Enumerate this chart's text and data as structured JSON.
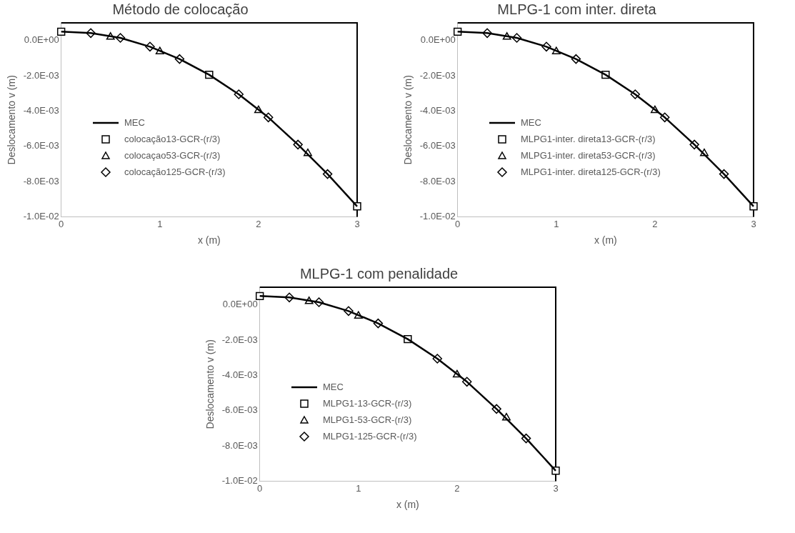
{
  "chart_data": [
    {
      "type": "line",
      "title": "Método de colocação",
      "xlabel": "x (m)",
      "ylabel": "Deslocamento v (m)",
      "xlim": [
        0,
        3
      ],
      "xticks": [
        0,
        1,
        2,
        3
      ],
      "ylim": [
        -0.01,
        0.001
      ],
      "yticks": [
        {
          "value": 0,
          "label": "0.0E+00"
        },
        {
          "value": -0.002,
          "label": "-2.0E-03"
        },
        {
          "value": -0.004,
          "label": "-4.0E-03"
        },
        {
          "value": -0.006,
          "label": "-6.0E-03"
        },
        {
          "value": -0.008,
          "label": "-8.0E-03"
        },
        {
          "value": -0.01,
          "label": "-1.0E-02"
        }
      ],
      "grid": false,
      "legend": "bottom left",
      "series": [
        {
          "name": "MEC",
          "type": "line",
          "color": "#000000",
          "marker": "none",
          "x": [
            0,
            0.3,
            0.6,
            0.9,
            1.2,
            1.5,
            1.8,
            2.1,
            2.4,
            2.7,
            3
          ],
          "values": [
            0.0005,
            0.00042,
            0.00015,
            -0.00035,
            -0.00105,
            -0.00194,
            -0.00305,
            -0.00436,
            -0.0059,
            -0.00757,
            -0.0094
          ]
        },
        {
          "name": "colocação13-GCR-(r/3)",
          "type": "scatter",
          "color": "#000000",
          "marker": "square",
          "x": [
            0,
            1.5,
            3
          ],
          "values": [
            0.0005,
            -0.00194,
            -0.0094
          ]
        },
        {
          "name": "colocaçao53-GCR-(r/3)",
          "type": "scatter",
          "color": "#000000",
          "marker": "triangle",
          "x": [
            0.5,
            1,
            2,
            2.5
          ],
          "values": [
            0.0002,
            -0.00063,
            -0.00396,
            -0.0064
          ]
        },
        {
          "name": "colocação125-GCR-(r/3)",
          "type": "scatter",
          "color": "#000000",
          "marker": "diamond",
          "x": [
            0.3,
            0.6,
            0.9,
            1.2,
            1.8,
            2.1,
            2.4,
            2.7
          ],
          "values": [
            0.00042,
            0.00015,
            -0.00035,
            -0.00105,
            -0.00305,
            -0.00436,
            -0.0059,
            -0.00757
          ]
        }
      ]
    },
    {
      "type": "line",
      "title": "MLPG-1 com inter. direta",
      "xlabel": "x (m)",
      "ylabel": "Deslocamento v (m)",
      "xlim": [
        0,
        3
      ],
      "xticks": [
        0,
        1,
        2,
        3
      ],
      "ylim": [
        -0.01,
        0.001
      ],
      "yticks": [
        {
          "value": 0,
          "label": "0.0E+00"
        },
        {
          "value": -0.002,
          "label": "-2.0E-03"
        },
        {
          "value": -0.004,
          "label": "-4.0E-03"
        },
        {
          "value": -0.006,
          "label": "-6.0E-03"
        },
        {
          "value": -0.008,
          "label": "-8.0E-03"
        },
        {
          "value": -0.01,
          "label": "-1.0E-02"
        }
      ],
      "grid": false,
      "legend": "bottom left",
      "series": [
        {
          "name": "MEC",
          "type": "line",
          "color": "#000000",
          "marker": "none",
          "x": [
            0,
            0.3,
            0.6,
            0.9,
            1.2,
            1.5,
            1.8,
            2.1,
            2.4,
            2.7,
            3
          ],
          "values": [
            0.0005,
            0.00042,
            0.00015,
            -0.00035,
            -0.00105,
            -0.00194,
            -0.00305,
            -0.00436,
            -0.0059,
            -0.00757,
            -0.0094
          ]
        },
        {
          "name": "MLPG1-inter. direta13-GCR-(r/3)",
          "type": "scatter",
          "color": "#000000",
          "marker": "square",
          "x": [
            0,
            1.5,
            3
          ],
          "values": [
            0.0005,
            -0.00194,
            -0.0094
          ]
        },
        {
          "name": "MLPG1-inter. direta53-GCR-(r/3)",
          "type": "scatter",
          "color": "#000000",
          "marker": "triangle",
          "x": [
            0.5,
            1,
            2,
            2.5
          ],
          "values": [
            0.0002,
            -0.00063,
            -0.00396,
            -0.0064
          ]
        },
        {
          "name": "MLPG1-inter. direta125-GCR-(r/3)",
          "type": "scatter",
          "color": "#000000",
          "marker": "diamond",
          "x": [
            0.3,
            0.6,
            0.9,
            1.2,
            1.8,
            2.1,
            2.4,
            2.7
          ],
          "values": [
            0.00042,
            0.00015,
            -0.00035,
            -0.00105,
            -0.00305,
            -0.00436,
            -0.0059,
            -0.00757
          ]
        }
      ]
    },
    {
      "type": "line",
      "title": "MLPG-1 com penalidade",
      "xlabel": "x (m)",
      "ylabel": "Deslocamento v (m)",
      "xlim": [
        0,
        3
      ],
      "xticks": [
        0,
        1,
        2,
        3
      ],
      "ylim": [
        -0.01,
        0.001
      ],
      "yticks": [
        {
          "value": 0,
          "label": "0.0E+00"
        },
        {
          "value": -0.002,
          "label": "-2.0E-03"
        },
        {
          "value": -0.004,
          "label": "-4.0E-03"
        },
        {
          "value": -0.006,
          "label": "-6.0E-03"
        },
        {
          "value": -0.008,
          "label": "-8.0E-03"
        },
        {
          "value": -0.01,
          "label": "-1.0E-02"
        }
      ],
      "grid": false,
      "legend": "bottom left",
      "series": [
        {
          "name": "MEC",
          "type": "line",
          "color": "#000000",
          "marker": "none",
          "x": [
            0,
            0.3,
            0.6,
            0.9,
            1.2,
            1.5,
            1.8,
            2.1,
            2.4,
            2.7,
            3
          ],
          "values": [
            0.0005,
            0.00042,
            0.00015,
            -0.00035,
            -0.00105,
            -0.00194,
            -0.00305,
            -0.00436,
            -0.0059,
            -0.00757,
            -0.0094
          ]
        },
        {
          "name": "MLPG1-13-GCR-(r/3)",
          "type": "scatter",
          "color": "#000000",
          "marker": "square",
          "x": [
            0,
            1.5,
            3
          ],
          "values": [
            0.0005,
            -0.00194,
            -0.0094
          ]
        },
        {
          "name": "MLPG1-53-GCR-(r/3)",
          "type": "scatter",
          "color": "#000000",
          "marker": "triangle",
          "x": [
            0.5,
            1,
            2,
            2.5
          ],
          "values": [
            0.0002,
            -0.00063,
            -0.00396,
            -0.0064
          ]
        },
        {
          "name": "MLPG1-125-GCR-(r/3)",
          "type": "scatter",
          "color": "#000000",
          "marker": "diamond",
          "x": [
            0.3,
            0.6,
            0.9,
            1.2,
            1.8,
            2.1,
            2.4,
            2.7
          ],
          "values": [
            0.00042,
            0.00015,
            -0.00035,
            -0.00105,
            -0.00305,
            -0.00436,
            -0.0059,
            -0.00757
          ]
        }
      ]
    }
  ]
}
